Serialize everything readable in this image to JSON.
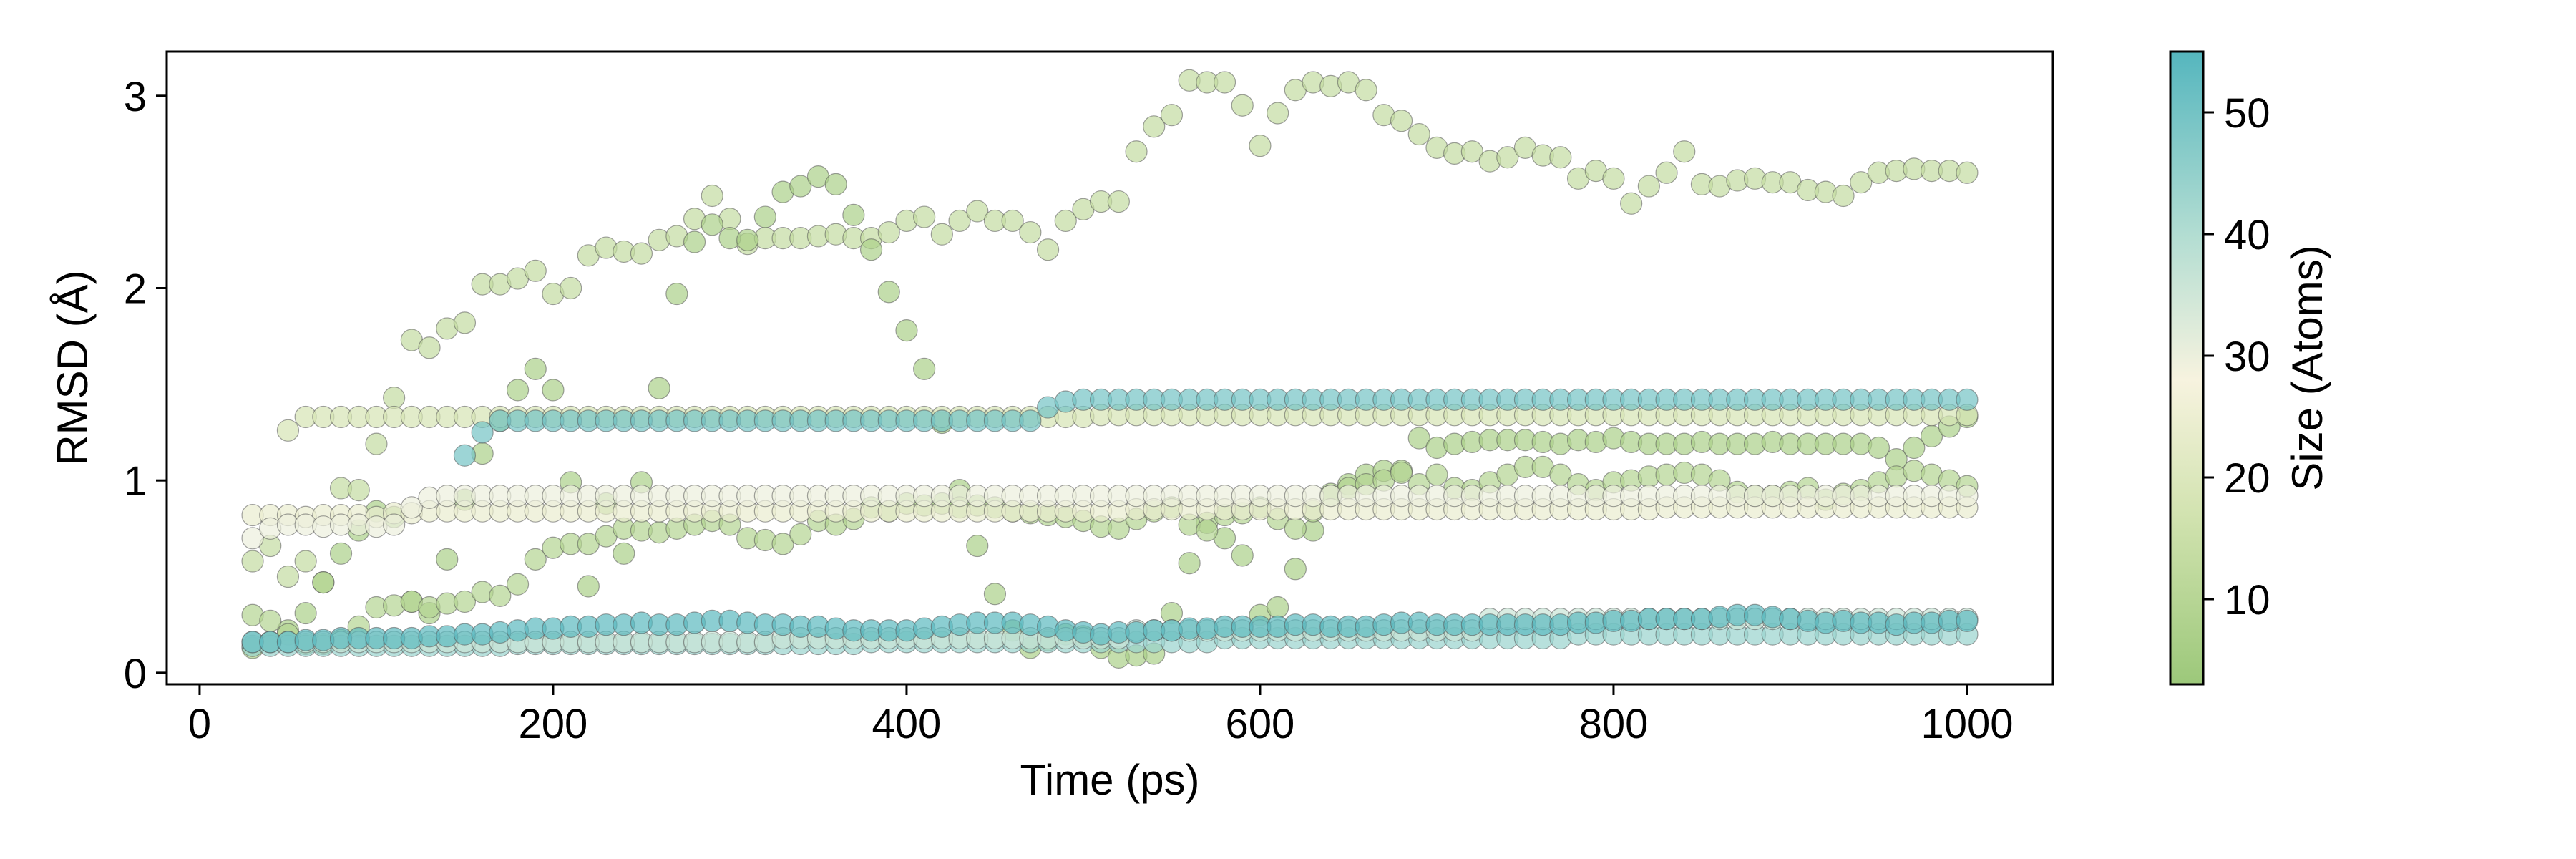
{
  "chart_data": {
    "type": "scatter",
    "title": "",
    "xlabel": "Time (ps)",
    "ylabel": "RMSD (Å)",
    "xlim": [
      -18.6,
      1048.6
    ],
    "ylim": [
      -0.06,
      3.23
    ],
    "x_ticks": [
      "0",
      "200",
      "400",
      "600",
      "800",
      "1000"
    ],
    "y_ticks": [
      "0",
      "1",
      "2",
      "3"
    ],
    "grid": false,
    "marker_alpha": 0.7,
    "colorbar": {
      "label": "Size (Atoms)",
      "range": [
        3,
        55
      ],
      "ticks": [
        "10",
        "20",
        "30",
        "40",
        "50"
      ],
      "colormap_stops": [
        {
          "value": 3,
          "color": "#9cc87a"
        },
        {
          "value": 17,
          "color": "#d2e3b0"
        },
        {
          "value": 28,
          "color": "#f7f3df"
        },
        {
          "value": 40,
          "color": "#b2ddd2"
        },
        {
          "value": 55,
          "color": "#55b6be"
        }
      ]
    },
    "x": [
      30,
      40,
      50,
      60,
      70,
      80,
      90,
      100,
      110,
      120,
      130,
      140,
      150,
      160,
      170,
      180,
      190,
      200,
      210,
      220,
      230,
      240,
      250,
      260,
      270,
      280,
      290,
      300,
      310,
      320,
      330,
      340,
      350,
      360,
      370,
      380,
      390,
      400,
      410,
      420,
      430,
      440,
      450,
      460,
      470,
      480,
      490,
      500,
      510,
      520,
      530,
      540,
      550,
      560,
      570,
      580,
      590,
      600,
      610,
      620,
      630,
      640,
      650,
      660,
      670,
      680,
      690,
      700,
      710,
      720,
      730,
      740,
      750,
      760,
      770,
      780,
      790,
      800,
      810,
      820,
      830,
      840,
      850,
      860,
      870,
      880,
      890,
      900,
      910,
      920,
      930,
      940,
      950,
      960,
      970,
      980,
      990,
      1000
    ],
    "series": [
      {
        "size": 13,
        "values": [
          0.58,
          0.66,
          0.5,
          0.58,
          0.47,
          0.96,
          0.95,
          1.19,
          1.43,
          1.73,
          1.69,
          1.79,
          1.82,
          2.02,
          2.02,
          2.05,
          2.09,
          1.97,
          2.0,
          2.17,
          2.21,
          2.19,
          2.18,
          2.25,
          2.27,
          2.36,
          2.48,
          2.36,
          2.23,
          2.26,
          2.26,
          2.26,
          2.27,
          2.28,
          2.26,
          2.26,
          2.29,
          2.35,
          2.37,
          2.28,
          2.35,
          2.4,
          2.35,
          2.35,
          2.29,
          2.2,
          2.35,
          2.41,
          2.45,
          2.45,
          2.71,
          2.84,
          2.9,
          3.08,
          3.07,
          3.07,
          2.95,
          2.74,
          2.91,
          3.03,
          3.07,
          3.05,
          3.07,
          3.03,
          2.9,
          2.87,
          2.8,
          2.73,
          2.7,
          2.71,
          2.66,
          2.68,
          2.73,
          2.69,
          2.68,
          2.57,
          2.61,
          2.57,
          2.44,
          2.53,
          2.6,
          2.71,
          2.54,
          2.53,
          2.56,
          2.57,
          2.55,
          2.55,
          2.51,
          2.5,
          2.48,
          2.55,
          2.6,
          2.61,
          2.62,
          2.61,
          2.61,
          2.6
        ]
      },
      {
        "size": 7,
        "values": [
          0.13,
          0.16,
          0.22,
          0.31,
          0.47,
          0.62,
          0.74,
          0.84,
          0.81,
          0.37,
          0.31,
          0.59,
          0.9,
          1.14,
          1.31,
          1.47,
          1.58,
          1.47,
          0.99,
          0.45,
          0.88,
          0.62,
          0.99,
          1.48,
          1.97,
          2.24,
          2.33,
          2.26,
          2.25,
          2.37,
          2.5,
          2.53,
          2.58,
          2.54,
          2.38,
          2.2,
          1.98,
          1.78,
          1.58,
          1.3,
          0.95,
          0.66,
          0.41,
          0.22,
          0.13,
          0.17,
          0.2,
          0.19,
          0.13,
          0.08,
          0.09,
          0.1,
          0.31,
          0.57,
          0.78,
          0.7,
          0.61,
          0.3,
          0.34,
          0.54,
          0.74,
          0.93,
          0.98,
          1.03,
          1.05,
          1.05,
          1.22,
          1.17,
          1.19,
          1.2,
          1.21,
          1.21,
          1.21,
          1.2,
          1.19,
          1.21,
          1.2,
          1.22,
          1.2,
          1.19,
          1.19,
          1.19,
          1.2,
          1.19,
          1.19,
          1.19,
          1.2,
          1.19,
          1.19,
          1.19,
          1.19,
          1.19,
          1.17,
          1.11,
          1.17,
          1.23,
          1.28,
          1.33
        ]
      },
      {
        "size": 9,
        "values": [
          0.3,
          0.27,
          0.2,
          0.15,
          0.15,
          0.17,
          0.24,
          0.34,
          0.35,
          0.37,
          0.34,
          0.36,
          0.37,
          0.42,
          0.4,
          0.46,
          0.59,
          0.65,
          0.67,
          0.67,
          0.71,
          0.75,
          0.74,
          0.73,
          0.75,
          0.77,
          0.79,
          0.77,
          0.7,
          0.69,
          0.67,
          0.72,
          0.79,
          0.77,
          0.8,
          0.86,
          0.84,
          0.88,
          0.87,
          0.88,
          0.86,
          0.87,
          0.86,
          0.84,
          0.83,
          0.82,
          0.81,
          0.79,
          0.76,
          0.75,
          0.8,
          0.84,
          0.86,
          0.77,
          0.74,
          0.82,
          0.83,
          0.86,
          0.8,
          0.75,
          0.84,
          0.92,
          0.96,
          0.98,
          1.0,
          1.04,
          0.98,
          1.03,
          0.96,
          0.95,
          0.99,
          1.03,
          1.07,
          1.07,
          1.03,
          0.98,
          0.95,
          0.99,
          1.0,
          1.02,
          1.03,
          1.04,
          1.03,
          1.0,
          0.94,
          0.92,
          0.92,
          0.94,
          0.96,
          0.9,
          0.93,
          0.95,
          0.99,
          1.02,
          1.05,
          1.03,
          1.0,
          0.97
        ]
      },
      {
        "size": 24,
        "values": [
          0.82,
          0.82,
          0.82,
          0.81,
          0.82,
          0.82,
          0.82,
          0.81,
          0.83,
          0.83,
          0.84,
          0.84,
          0.84,
          0.84,
          0.84,
          0.84,
          0.84,
          0.84,
          0.84,
          0.84,
          0.84,
          0.84,
          0.84,
          0.84,
          0.84,
          0.84,
          0.84,
          0.84,
          0.84,
          0.84,
          0.84,
          0.84,
          0.84,
          0.84,
          0.84,
          0.84,
          0.84,
          0.84,
          0.84,
          0.84,
          0.84,
          0.84,
          0.84,
          0.84,
          0.84,
          0.84,
          0.84,
          0.84,
          0.84,
          0.84,
          0.85,
          0.85,
          0.85,
          0.85,
          0.85,
          0.85,
          0.85,
          0.85,
          0.85,
          0.85,
          0.85,
          0.85,
          0.85,
          0.85,
          0.85,
          0.85,
          0.85,
          0.85,
          0.85,
          0.85,
          0.85,
          0.85,
          0.85,
          0.85,
          0.85,
          0.85,
          0.85,
          0.85,
          0.85,
          0.85,
          0.86,
          0.86,
          0.86,
          0.86,
          0.86,
          0.86,
          0.86,
          0.86,
          0.86,
          0.86,
          0.86,
          0.86,
          0.86,
          0.86,
          0.86,
          0.86,
          0.86,
          0.86
        ]
      },
      {
        "size": 30,
        "values": [
          0.7,
          0.75,
          0.77,
          0.77,
          0.76,
          0.77,
          0.77,
          0.76,
          0.77,
          0.86,
          0.91,
          0.92,
          0.92,
          0.92,
          0.92,
          0.92,
          0.92,
          0.92,
          0.92,
          0.92,
          0.92,
          0.92,
          0.92,
          0.92,
          0.92,
          0.92,
          0.92,
          0.92,
          0.92,
          0.92,
          0.92,
          0.92,
          0.92,
          0.92,
          0.92,
          0.92,
          0.92,
          0.92,
          0.92,
          0.92,
          0.92,
          0.92,
          0.92,
          0.92,
          0.92,
          0.92,
          0.92,
          0.92,
          0.92,
          0.92,
          0.92,
          0.92,
          0.92,
          0.92,
          0.92,
          0.92,
          0.92,
          0.92,
          0.92,
          0.92,
          0.92,
          0.92,
          0.92,
          0.92,
          0.92,
          0.92,
          0.92,
          0.92,
          0.92,
          0.92,
          0.92,
          0.92,
          0.92,
          0.92,
          0.92,
          0.92,
          0.92,
          0.92,
          0.92,
          0.92,
          0.92,
          0.92,
          0.92,
          0.92,
          0.92,
          0.92,
          0.92,
          0.92,
          0.92,
          0.92,
          0.92,
          0.92,
          0.92,
          0.92,
          0.92,
          0.92,
          0.92,
          0.92
        ]
      },
      {
        "size": 18,
        "values": [
          null,
          null,
          1.26,
          1.33,
          1.33,
          1.33,
          1.33,
          1.33,
          1.33,
          1.33,
          1.33,
          1.33,
          1.33,
          1.33,
          1.33,
          1.33,
          1.33,
          1.33,
          1.33,
          1.33,
          1.33,
          1.33,
          1.33,
          1.33,
          1.33,
          1.33,
          1.33,
          1.33,
          1.33,
          1.33,
          1.33,
          1.33,
          1.33,
          1.33,
          1.33,
          1.33,
          1.33,
          1.33,
          1.33,
          1.33,
          1.33,
          1.33,
          1.33,
          1.33,
          1.33,
          1.33,
          1.33,
          1.33,
          1.34,
          1.34,
          1.34,
          1.34,
          1.34,
          1.34,
          1.34,
          1.34,
          1.34,
          1.34,
          1.34,
          1.34,
          1.34,
          1.34,
          1.34,
          1.34,
          1.34,
          1.34,
          1.34,
          1.34,
          1.34,
          1.34,
          1.34,
          1.34,
          1.34,
          1.34,
          1.34,
          1.34,
          1.34,
          1.34,
          1.34,
          1.34,
          1.34,
          1.34,
          1.34,
          1.34,
          1.34,
          1.34,
          1.34,
          1.34,
          1.34,
          1.34,
          1.34,
          1.34,
          1.34,
          1.34,
          1.34,
          1.34,
          1.34,
          1.34
        ]
      },
      {
        "size": 44,
        "values": [
          0.14,
          0.14,
          0.14,
          0.14,
          0.14,
          0.14,
          0.14,
          0.14,
          0.14,
          0.14,
          0.14,
          0.14,
          0.14,
          0.14,
          0.14,
          0.15,
          0.15,
          0.15,
          0.15,
          0.15,
          0.15,
          0.15,
          0.15,
          0.15,
          0.15,
          0.15,
          0.15,
          0.15,
          0.15,
          0.15,
          0.15,
          0.15,
          0.15,
          0.15,
          0.15,
          0.16,
          0.16,
          0.16,
          0.16,
          0.16,
          0.16,
          0.16,
          0.16,
          0.16,
          0.16,
          0.16,
          0.16,
          0.16,
          0.16,
          0.16,
          0.16,
          0.16,
          0.16,
          0.16,
          0.16,
          0.18,
          0.18,
          0.18,
          0.18,
          0.18,
          0.18,
          0.18,
          0.18,
          0.18,
          0.18,
          0.18,
          0.18,
          0.18,
          0.18,
          0.18,
          0.18,
          0.18,
          0.18,
          0.18,
          0.18,
          0.2,
          0.2,
          0.2,
          0.2,
          0.2,
          0.2,
          0.2,
          0.2,
          0.2,
          0.2,
          0.2,
          0.2,
          0.2,
          0.2,
          0.2,
          0.2,
          0.2,
          0.2,
          0.2,
          0.2,
          0.2,
          0.2,
          0.2
        ]
      },
      {
        "size": 36,
        "values": [
          0.16,
          0.16,
          0.16,
          0.16,
          0.16,
          0.16,
          0.16,
          0.16,
          0.16,
          0.16,
          0.16,
          0.16,
          0.16,
          0.16,
          0.16,
          0.16,
          0.16,
          0.16,
          0.16,
          0.16,
          0.16,
          0.16,
          0.16,
          0.16,
          0.16,
          0.16,
          0.16,
          0.16,
          0.16,
          0.16,
          0.18,
          0.18,
          0.18,
          0.18,
          0.18,
          0.18,
          0.18,
          0.18,
          0.18,
          0.18,
          0.18,
          0.18,
          0.18,
          0.18,
          0.18,
          0.18,
          0.18,
          0.18,
          0.18,
          0.18,
          0.22,
          0.22,
          0.22,
          0.22,
          0.22,
          0.22,
          0.22,
          0.22,
          0.22,
          0.22,
          0.22,
          0.22,
          0.22,
          0.22,
          0.22,
          0.22,
          0.22,
          0.22,
          0.22,
          0.22,
          0.28,
          0.28,
          0.28,
          0.28,
          0.28,
          0.28,
          0.28,
          0.28,
          0.28,
          0.28,
          0.28,
          0.28,
          0.28,
          0.28,
          0.28,
          0.28,
          0.28,
          0.28,
          0.28,
          0.28,
          0.28,
          0.28,
          0.28,
          0.28,
          0.28,
          0.28,
          0.28,
          0.28
        ]
      },
      {
        "size": 50,
        "values": [
          null,
          null,
          null,
          null,
          null,
          null,
          null,
          null,
          null,
          null,
          null,
          null,
          1.13,
          1.25,
          1.31,
          1.31,
          1.31,
          1.31,
          1.31,
          1.31,
          1.31,
          1.31,
          1.31,
          1.31,
          1.31,
          1.31,
          1.31,
          1.31,
          1.31,
          1.31,
          1.31,
          1.31,
          1.31,
          1.31,
          1.31,
          1.31,
          1.31,
          1.31,
          1.31,
          1.31,
          1.31,
          1.31,
          1.31,
          1.31,
          1.31,
          1.38,
          1.41,
          1.42,
          1.42,
          1.42,
          1.42,
          1.42,
          1.42,
          1.42,
          1.42,
          1.42,
          1.42,
          1.42,
          1.42,
          1.42,
          1.42,
          1.42,
          1.42,
          1.42,
          1.42,
          1.42,
          1.42,
          1.42,
          1.42,
          1.42,
          1.42,
          1.42,
          1.42,
          1.42,
          1.42,
          1.42,
          1.42,
          1.42,
          1.42,
          1.42,
          1.42,
          1.42,
          1.42,
          1.42,
          1.42,
          1.42,
          1.42,
          1.42,
          1.42,
          1.42,
          1.42,
          1.42,
          1.42,
          1.42,
          1.42,
          1.42,
          1.42,
          1.42
        ]
      },
      {
        "size": 54,
        "values": [
          0.16,
          0.16,
          0.16,
          0.17,
          0.17,
          0.18,
          0.18,
          0.18,
          0.18,
          0.18,
          0.19,
          0.19,
          0.2,
          0.2,
          0.21,
          0.22,
          0.23,
          0.23,
          0.24,
          0.24,
          0.25,
          0.25,
          0.26,
          0.25,
          0.25,
          0.26,
          0.27,
          0.27,
          0.26,
          0.25,
          0.25,
          0.24,
          0.24,
          0.23,
          0.22,
          0.22,
          0.22,
          0.22,
          0.23,
          0.24,
          0.25,
          0.26,
          0.26,
          0.26,
          0.25,
          0.24,
          0.22,
          0.21,
          0.2,
          0.21,
          0.21,
          0.22,
          0.22,
          0.23,
          0.23,
          0.24,
          0.24,
          0.24,
          0.24,
          0.25,
          0.25,
          0.24,
          0.24,
          0.24,
          0.25,
          0.26,
          0.26,
          0.25,
          0.25,
          0.25,
          0.25,
          0.25,
          0.25,
          0.25,
          0.25,
          0.26,
          0.26,
          0.27,
          0.27,
          0.28,
          0.28,
          0.28,
          0.28,
          0.29,
          0.3,
          0.3,
          0.29,
          0.28,
          0.27,
          0.26,
          0.27,
          0.26,
          0.26,
          0.25,
          0.26,
          0.26,
          0.27,
          0.27
        ]
      }
    ]
  }
}
